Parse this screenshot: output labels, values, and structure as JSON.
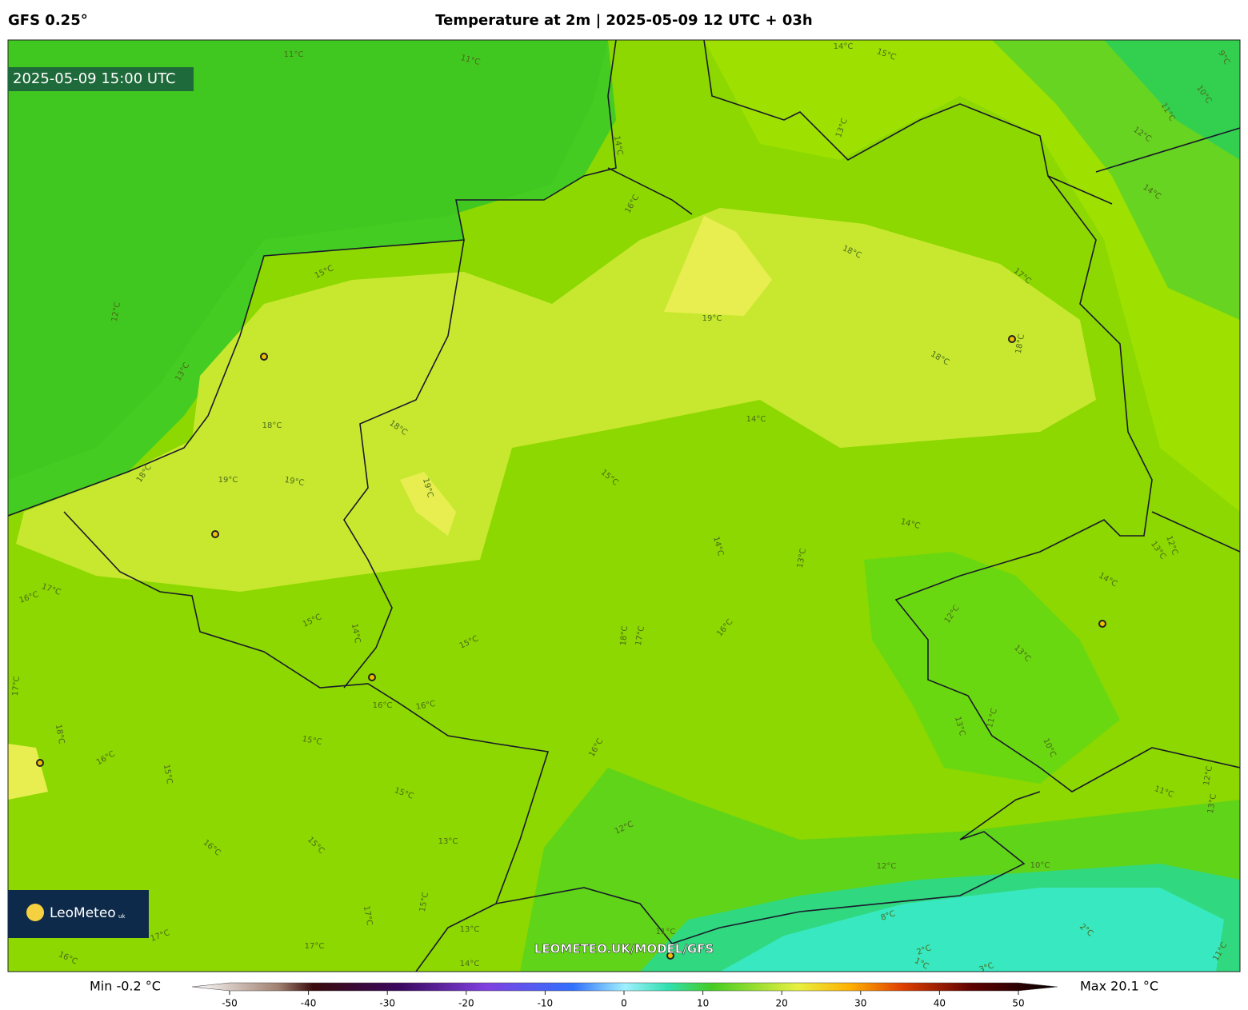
{
  "header": {
    "model": "GFS 0.25°",
    "title": "Temperature at 2m | 2025-05-09 12 UTC + 03h"
  },
  "map": {
    "valid_time": "2025-05-09 15:00 UTC",
    "watermark": "LEOMETEO.UK/MODEL/GFS",
    "logo": {
      "name": "LeoMeteo",
      "suffix": "uk"
    },
    "contour_labels": [
      "11°C",
      "11°C",
      "14°C",
      "15°C",
      "9°C",
      "10°C",
      "11°C",
      "12°C",
      "14°C",
      "13°C",
      "14°C",
      "16°C",
      "15°C",
      "12°C",
      "13°C",
      "18°C",
      "17°C",
      "19°C",
      "18°C",
      "18°C",
      "18°C",
      "18°C",
      "14°C",
      "19°C",
      "19°C",
      "18°C",
      "19°C",
      "15°C",
      "14°C",
      "14°C",
      "13°C",
      "12°C",
      "13°C",
      "14°C",
      "17°C",
      "16°C",
      "15°C",
      "14°C",
      "15°C",
      "18°C",
      "17°C",
      "16°C",
      "12°C",
      "13°C",
      "17°C",
      "16°C",
      "16°C",
      "18°C",
      "15°C",
      "16°C",
      "15°C",
      "16°C",
      "13°C",
      "11°C",
      "10°C",
      "11°C",
      "12°C",
      "13°C",
      "15°C",
      "12°C",
      "15°C",
      "16°C",
      "13°C",
      "12°C",
      "10°C",
      "17°C",
      "15°C",
      "13°C",
      "17°C",
      "17°C",
      "16°C",
      "14°C",
      "11°C",
      "8°C",
      "2°C",
      "2°C",
      "3°C",
      "1°C",
      "11°C"
    ]
  },
  "colorbar": {
    "min_label": "Min -0.2 °C",
    "max_label": "Max 20.1 °C",
    "range": [
      -50,
      50
    ],
    "ticks": [
      -50,
      -40,
      -30,
      -20,
      -10,
      0,
      10,
      20,
      30,
      40,
      50
    ]
  }
}
